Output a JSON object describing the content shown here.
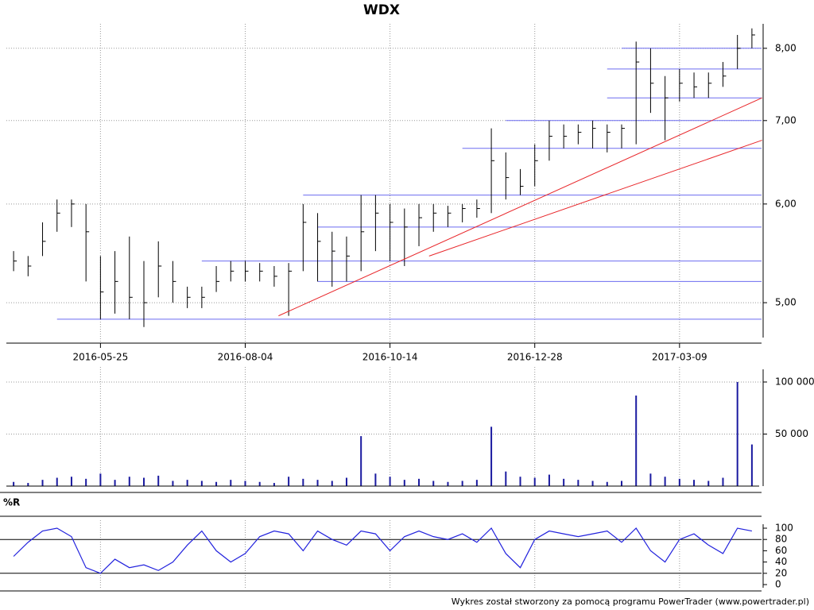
{
  "chart_data": [
    {
      "type": "ohlc",
      "title": "WDX",
      "log_scale": true,
      "grid": true,
      "categories": [
        null,
        null,
        null,
        null,
        null,
        null,
        "2016-05-25",
        null,
        null,
        null,
        null,
        null,
        null,
        null,
        null,
        null,
        "2016-08-04",
        null,
        null,
        null,
        null,
        null,
        null,
        null,
        null,
        null,
        "2016-10-14",
        null,
        null,
        null,
        null,
        null,
        null,
        null,
        null,
        null,
        "2016-12-28",
        null,
        null,
        null,
        null,
        null,
        null,
        null,
        null,
        null,
        "2017-03-09",
        null,
        null,
        null,
        null,
        null
      ],
      "high": [
        5.5,
        5.45,
        5.8,
        6.05,
        6.05,
        6.0,
        5.45,
        5.5,
        5.65,
        5.4,
        5.6,
        5.4,
        5.15,
        5.15,
        5.35,
        5.4,
        5.4,
        5.38,
        5.35,
        5.38,
        6.0,
        5.9,
        5.7,
        5.65,
        6.1,
        6.1,
        6.0,
        5.95,
        6.0,
        6.0,
        5.98,
        6.0,
        6.05,
        6.9,
        6.6,
        6.4,
        6.7,
        7.0,
        6.95,
        6.95,
        7.0,
        6.95,
        6.95,
        8.1,
        8.0,
        7.6,
        7.7,
        7.65,
        7.65,
        7.8,
        8.2,
        8.3
      ],
      "low": [
        5.3,
        5.25,
        5.45,
        5.7,
        5.75,
        5.2,
        4.85,
        4.9,
        4.85,
        4.78,
        5.05,
        5.0,
        4.95,
        4.95,
        5.1,
        5.2,
        5.2,
        5.2,
        5.15,
        4.88,
        5.3,
        5.2,
        5.15,
        5.2,
        5.3,
        5.5,
        5.4,
        5.35,
        5.55,
        5.7,
        5.75,
        5.8,
        5.85,
        5.9,
        6.05,
        6.1,
        6.2,
        6.5,
        6.65,
        6.7,
        6.65,
        6.6,
        6.65,
        6.7,
        7.1,
        6.75,
        7.25,
        7.3,
        7.3,
        7.45,
        7.7,
        8.0
      ],
      "close": [
        5.4,
        5.35,
        5.6,
        5.9,
        6.0,
        5.7,
        5.1,
        5.2,
        5.05,
        5.0,
        5.35,
        5.2,
        5.05,
        5.05,
        5.2,
        5.3,
        5.3,
        5.3,
        5.25,
        5.3,
        5.8,
        5.6,
        5.5,
        5.45,
        5.7,
        5.9,
        5.8,
        5.75,
        5.85,
        5.9,
        5.9,
        5.95,
        5.95,
        6.5,
        6.3,
        6.2,
        6.5,
        6.8,
        6.8,
        6.85,
        6.9,
        6.85,
        6.9,
        7.8,
        7.5,
        7.3,
        7.5,
        7.45,
        7.5,
        7.6,
        8.0,
        8.2
      ],
      "color": "#000000",
      "ylim": [
        4.64,
        8.37
      ],
      "yticks": [
        {
          "value": 5,
          "label": "5,00"
        },
        {
          "value": 6,
          "label": "6,00"
        },
        {
          "value": 7,
          "label": "7,00"
        },
        {
          "value": 8,
          "label": "8,00"
        }
      ],
      "levels": [
        {
          "value": 4.85,
          "from": 3
        },
        {
          "value": 5.2,
          "from": 21
        },
        {
          "value": 5.4,
          "from": 13
        },
        {
          "value": 5.75,
          "from": 21
        },
        {
          "value": 6.1,
          "from": 20
        },
        {
          "value": 6.65,
          "from": 31
        },
        {
          "value": 7.0,
          "from": 34
        },
        {
          "value": 7.3,
          "from": 41
        },
        {
          "value": 7.7,
          "from": 41
        },
        {
          "value": 8.0,
          "from": 42
        }
      ],
      "level_color": "#6b6bf0",
      "trendlines": [
        {
          "x": [
            18.3,
            51.7
          ],
          "y": [
            4.88,
            7.3
          ]
        },
        {
          "x": [
            28.7,
            51.7
          ],
          "y": [
            5.45,
            6.75
          ]
        }
      ],
      "trend_color": "#e8262a"
    },
    {
      "type": "bar",
      "values": [
        4000,
        3000,
        6000,
        8000,
        9000,
        7000,
        12000,
        6000,
        9000,
        8000,
        10000,
        5000,
        6000,
        5000,
        4000,
        6000,
        5000,
        4000,
        3000,
        9000,
        7000,
        6000,
        5000,
        8000,
        48000,
        12000,
        9000,
        6000,
        7000,
        5000,
        4000,
        5000,
        6000,
        57000,
        14000,
        9000,
        8000,
        11000,
        7000,
        6000,
        5000,
        4000,
        5000,
        87000,
        12000,
        9000,
        7000,
        6000,
        5000,
        8000,
        100000,
        40000
      ],
      "color": "#1a1aa0",
      "ylim": [
        0,
        116000
      ],
      "yticks": [
        {
          "value": 50000,
          "label": "50 000"
        },
        {
          "value": 100000,
          "label": "100 000"
        }
      ]
    },
    {
      "type": "line",
      "title": "%R",
      "values": [
        50,
        75,
        95,
        100,
        85,
        30,
        20,
        45,
        30,
        35,
        25,
        40,
        70,
        95,
        60,
        40,
        55,
        85,
        95,
        90,
        60,
        95,
        80,
        70,
        95,
        90,
        60,
        85,
        95,
        85,
        80,
        90,
        75,
        100,
        55,
        30,
        80,
        95,
        90,
        85,
        90,
        95,
        75,
        100,
        60,
        40,
        80,
        90,
        70,
        55,
        100,
        95
      ],
      "color": "#2222dd",
      "ylim": [
        0,
        100
      ],
      "yticks": [
        0,
        20,
        40,
        60,
        80,
        100
      ],
      "reference_lines": [
        20,
        80
      ]
    }
  ],
  "footer": "Wykres został stworzony za pomocą programu PowerTrader (www.powertrader.pl)"
}
